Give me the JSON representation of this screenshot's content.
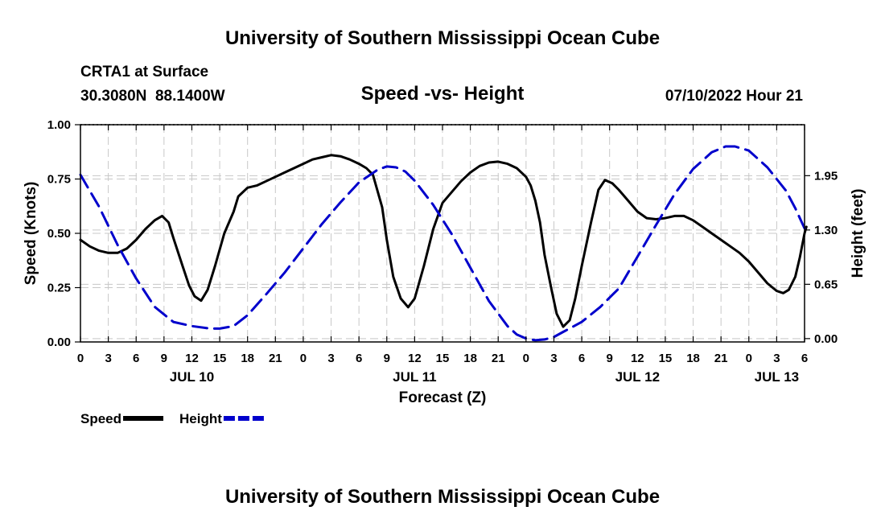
{
  "chart_data": {
    "type": "line",
    "title": "University of Southern Mississippi Ocean Cube",
    "footer_title": "University of Southern Mississippi Ocean Cube",
    "station": "CRTA1 at Surface",
    "coords": "30.3080N  88.1400W",
    "subtitle": "Speed -vs- Height",
    "datetime": "07/10/2022 Hour 21",
    "xlabel": "Forecast (Z)",
    "ylabel": "Speed (Knots)",
    "y2label": "Height (feet)",
    "ylim": [
      0,
      1
    ],
    "yticks": [
      "0.00",
      "0.25",
      "0.50",
      "0.75",
      "1.00"
    ],
    "y2lim": [
      -0.04,
      2.56
    ],
    "y2ticks": [
      "0.00",
      "0.65",
      "1.30",
      "1.95"
    ],
    "x_range_hours": [
      0,
      78
    ],
    "x_tick_hours": [
      0,
      3,
      6,
      9,
      12,
      15,
      18,
      21,
      24,
      27,
      30,
      33,
      36,
      39,
      42,
      45,
      48,
      51,
      54,
      57,
      60,
      63,
      66,
      69,
      72,
      75,
      78
    ],
    "x_tick_labels": [
      "0",
      "3",
      "6",
      "9",
      "12",
      "15",
      "18",
      "21",
      "0",
      "3",
      "6",
      "9",
      "12",
      "15",
      "18",
      "21",
      "0",
      "3",
      "6",
      "9",
      "12",
      "15",
      "18",
      "21",
      "0",
      "3",
      "6"
    ],
    "day_labels": [
      {
        "hour": 12,
        "label": "JUL 10"
      },
      {
        "hour": 36,
        "label": "JUL 11"
      },
      {
        "hour": 60,
        "label": "JUL 12"
      },
      {
        "hour": 75,
        "label": "JUL 13"
      }
    ],
    "series": [
      {
        "name": "Speed",
        "axis": "left",
        "color": "#000000",
        "dashed": false,
        "points": [
          [
            0,
            0.47
          ],
          [
            1,
            0.44
          ],
          [
            2,
            0.42
          ],
          [
            3,
            0.41
          ],
          [
            4,
            0.41
          ],
          [
            5,
            0.43
          ],
          [
            6,
            0.47
          ],
          [
            7,
            0.52
          ],
          [
            8,
            0.56
          ],
          [
            8.8,
            0.58
          ],
          [
            9.5,
            0.55
          ],
          [
            10,
            0.48
          ],
          [
            11,
            0.35
          ],
          [
            11.7,
            0.26
          ],
          [
            12.3,
            0.21
          ],
          [
            13,
            0.19
          ],
          [
            13.7,
            0.24
          ],
          [
            14.5,
            0.35
          ],
          [
            15.5,
            0.5
          ],
          [
            16.5,
            0.6
          ],
          [
            17,
            0.67
          ],
          [
            18,
            0.71
          ],
          [
            19,
            0.72
          ],
          [
            20,
            0.74
          ],
          [
            21,
            0.76
          ],
          [
            22,
            0.78
          ],
          [
            23,
            0.8
          ],
          [
            24,
            0.82
          ],
          [
            25,
            0.84
          ],
          [
            26,
            0.85
          ],
          [
            27,
            0.86
          ],
          [
            28,
            0.855
          ],
          [
            29,
            0.84
          ],
          [
            30,
            0.82
          ],
          [
            30.8,
            0.8
          ],
          [
            31.5,
            0.77
          ],
          [
            32.5,
            0.62
          ],
          [
            33,
            0.47
          ],
          [
            33.7,
            0.3
          ],
          [
            34.5,
            0.2
          ],
          [
            35.3,
            0.16
          ],
          [
            36,
            0.2
          ],
          [
            37,
            0.35
          ],
          [
            38,
            0.52
          ],
          [
            39,
            0.64
          ],
          [
            40,
            0.69
          ],
          [
            41,
            0.74
          ],
          [
            42,
            0.78
          ],
          [
            43,
            0.81
          ],
          [
            44,
            0.826
          ],
          [
            45,
            0.83
          ],
          [
            46,
            0.82
          ],
          [
            47,
            0.8
          ],
          [
            48,
            0.76
          ],
          [
            48.5,
            0.72
          ],
          [
            49,
            0.65
          ],
          [
            49.5,
            0.55
          ],
          [
            50,
            0.4
          ],
          [
            50.7,
            0.25
          ],
          [
            51.3,
            0.13
          ],
          [
            52,
            0.07
          ],
          [
            52.7,
            0.1
          ],
          [
            53.3,
            0.2
          ],
          [
            54,
            0.35
          ],
          [
            55,
            0.55
          ],
          [
            55.8,
            0.7
          ],
          [
            56.5,
            0.745
          ],
          [
            57.3,
            0.73
          ],
          [
            58,
            0.7
          ],
          [
            59,
            0.65
          ],
          [
            60,
            0.6
          ],
          [
            61,
            0.57
          ],
          [
            62,
            0.565
          ],
          [
            63,
            0.57
          ],
          [
            64,
            0.58
          ],
          [
            65,
            0.58
          ],
          [
            66,
            0.56
          ],
          [
            67,
            0.53
          ],
          [
            68,
            0.5
          ],
          [
            69,
            0.47
          ],
          [
            70,
            0.44
          ],
          [
            71,
            0.41
          ],
          [
            72,
            0.37
          ],
          [
            73,
            0.32
          ],
          [
            74,
            0.27
          ],
          [
            75,
            0.235
          ],
          [
            75.7,
            0.225
          ],
          [
            76.3,
            0.24
          ],
          [
            77,
            0.3
          ],
          [
            77.5,
            0.39
          ],
          [
            78,
            0.5
          ],
          [
            78.2,
            0.53
          ]
        ]
      },
      {
        "name": "Height",
        "axis": "right",
        "color": "#0000CC",
        "dashed": true,
        "points": [
          [
            0,
            1.96
          ],
          [
            2,
            1.58
          ],
          [
            4,
            1.12
          ],
          [
            6,
            0.72
          ],
          [
            8,
            0.38
          ],
          [
            10,
            0.2
          ],
          [
            12,
            0.15
          ],
          [
            14,
            0.12
          ],
          [
            15,
            0.12
          ],
          [
            16.5,
            0.15
          ],
          [
            18,
            0.28
          ],
          [
            20,
            0.53
          ],
          [
            22,
            0.79
          ],
          [
            24,
            1.08
          ],
          [
            26,
            1.37
          ],
          [
            28,
            1.63
          ],
          [
            30,
            1.87
          ],
          [
            32,
            2.02
          ],
          [
            33,
            2.06
          ],
          [
            34,
            2.05
          ],
          [
            35,
            2.0
          ],
          [
            36,
            1.89
          ],
          [
            38,
            1.6
          ],
          [
            40,
            1.25
          ],
          [
            42,
            0.85
          ],
          [
            44,
            0.45
          ],
          [
            46,
            0.15
          ],
          [
            47,
            0.05
          ],
          [
            48,
            0.0
          ],
          [
            49,
            -0.02
          ],
          [
            50,
            -0.01
          ],
          [
            51,
            0.02
          ],
          [
            52,
            0.08
          ],
          [
            54,
            0.2
          ],
          [
            56,
            0.38
          ],
          [
            58,
            0.6
          ],
          [
            60,
            0.98
          ],
          [
            62,
            1.36
          ],
          [
            64,
            1.73
          ],
          [
            66,
            2.03
          ],
          [
            68,
            2.23
          ],
          [
            69.5,
            2.3
          ],
          [
            70.5,
            2.3
          ],
          [
            72,
            2.25
          ],
          [
            74,
            2.05
          ],
          [
            76,
            1.77
          ],
          [
            77,
            1.56
          ],
          [
            78,
            1.32
          ]
        ]
      }
    ],
    "legend": [
      {
        "label": "Speed",
        "color": "#000000",
        "dashed": false
      },
      {
        "label": "Height",
        "color": "#0000CC",
        "dashed": true
      }
    ]
  }
}
